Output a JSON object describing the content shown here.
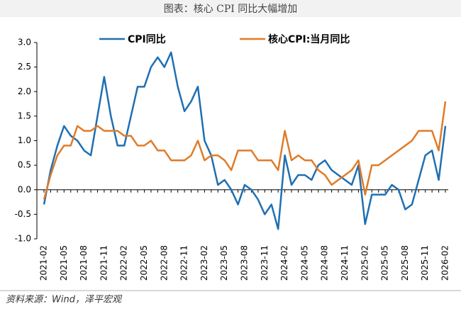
{
  "chart_data": {
    "type": "line",
    "title": "图表：核心 CPI 同比大幅增加",
    "source": "资料来源：Wind，泽平宏观",
    "categories": [
      "2021-02",
      null,
      null,
      "2021-05",
      null,
      null,
      "2021-08",
      null,
      null,
      "2021-11",
      null,
      null,
      "2022-02",
      null,
      null,
      "2022-05",
      null,
      null,
      "2022-08",
      null,
      null,
      "2022-11",
      null,
      null,
      "2023-02",
      null,
      null,
      "2023-05",
      null,
      null,
      "2023-08",
      null,
      null,
      "2023-11",
      null,
      null,
      "2024-02",
      null,
      null,
      "2024-05",
      null,
      null,
      "2024-08",
      null,
      null,
      "2024-11",
      null,
      null,
      "2025-02",
      null,
      null,
      "2025-05",
      null,
      null,
      "2025-08",
      null,
      null,
      "2025-11",
      null,
      null,
      "2026-02"
    ],
    "series": [
      {
        "name": "CPI同比",
        "color": "#1f6fb2",
        "values": [
          -0.3,
          0.4,
          0.9,
          1.3,
          1.1,
          1.0,
          0.8,
          0.7,
          1.5,
          2.3,
          1.5,
          0.9,
          0.9,
          1.5,
          2.1,
          2.1,
          2.5,
          2.7,
          2.5,
          2.8,
          2.1,
          1.6,
          1.8,
          2.1,
          1.0,
          0.7,
          0.1,
          0.2,
          0.0,
          -0.3,
          0.1,
          0.0,
          -0.2,
          -0.5,
          -0.3,
          -0.8,
          0.7,
          0.1,
          0.3,
          0.3,
          0.2,
          0.5,
          0.6,
          0.4,
          0.3,
          0.2,
          0.1,
          0.5,
          -0.7,
          -0.1,
          -0.1,
          -0.1,
          0.1,
          0.0,
          -0.4,
          -0.3,
          0.2,
          0.7,
          0.8,
          0.2,
          1.3
        ]
      },
      {
        "name": "核心CPI:当月同比",
        "color": "#e07b28",
        "values": [
          -0.2,
          0.3,
          0.7,
          0.9,
          0.9,
          1.3,
          1.2,
          1.2,
          1.3,
          1.2,
          1.2,
          1.2,
          1.1,
          1.1,
          0.9,
          0.9,
          1.0,
          0.8,
          0.8,
          0.6,
          0.6,
          0.6,
          0.7,
          1.0,
          0.6,
          0.7,
          0.7,
          0.6,
          0.4,
          0.8,
          0.8,
          0.8,
          0.6,
          0.6,
          0.6,
          0.4,
          1.2,
          0.6,
          0.7,
          0.6,
          0.6,
          0.4,
          0.3,
          0.1,
          0.2,
          0.3,
          0.4,
          0.6,
          -0.1,
          0.5,
          0.5,
          0.6,
          0.7,
          0.8,
          0.9,
          1.0,
          1.2,
          1.2,
          1.2,
          0.8,
          1.8
        ]
      }
    ],
    "ylim": [
      -1.0,
      3.0
    ],
    "yticks": [
      {
        "value": -1.0,
        "label": "-1.0"
      },
      -0.5,
      {
        "value": 0,
        "label": "0.0"
      },
      0.5,
      {
        "value": 1.0,
        "label": "1.0"
      },
      1.5,
      {
        "value": 2.0,
        "label": "2.0"
      },
      2.5,
      {
        "value": 3.0,
        "label": "3.0"
      }
    ]
  }
}
